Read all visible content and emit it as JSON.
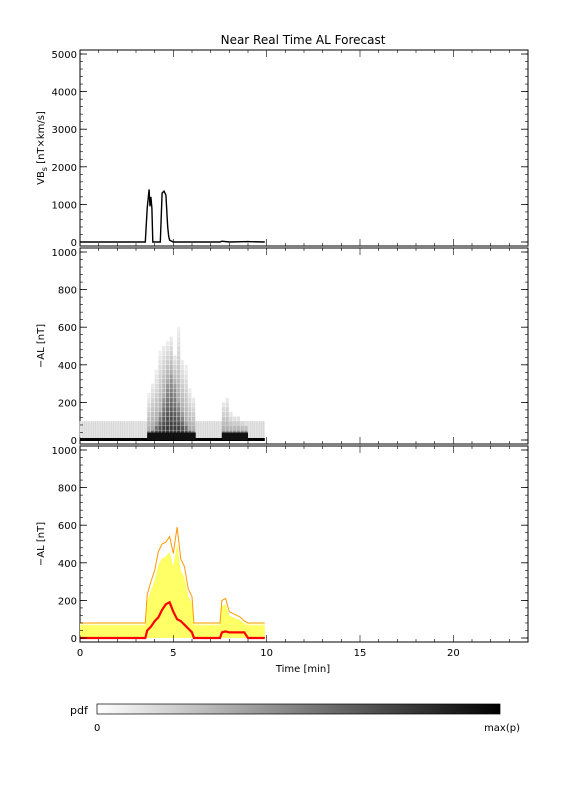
{
  "title": "Near Real Time AL Forecast",
  "colors": {
    "axis": "#000000",
    "pdf_dark": "#000000",
    "yellow_fill": "#ffff66",
    "orange_line": "#ff9900",
    "red_line": "#ff0000",
    "light_band": "#ffffcc"
  },
  "chart_data": [
    {
      "type": "line",
      "panel": "top",
      "title": "Near Real Time AL Forecast",
      "ylabel": "VB",
      "ylabel_sub": "s",
      "ylabel_units": " [nT×km/s]",
      "xlim": [
        0,
        24
      ],
      "ylim": [
        0,
        5000
      ],
      "yticks": [
        "0",
        "1000",
        "2000",
        "3000",
        "4000",
        "5000"
      ],
      "series": [
        {
          "x": [
            0,
            3.5,
            3.6,
            3.7,
            3.75,
            3.8,
            3.85,
            3.9,
            4.0,
            4.3,
            4.4,
            4.5,
            4.6,
            4.7,
            4.75,
            4.8,
            5.0,
            5.5,
            7.5,
            7.6,
            8.0,
            9.0,
            9.9
          ],
          "y": [
            0,
            0,
            900,
            1400,
            950,
            1200,
            900,
            0,
            0,
            0,
            1300,
            1350,
            1250,
            400,
            150,
            50,
            0,
            0,
            0,
            20,
            0,
            10,
            0
          ]
        }
      ]
    },
    {
      "type": "heatmap",
      "panel": "middle",
      "ylabel": "−AL [nT]",
      "xlim": [
        0,
        24
      ],
      "ylim": [
        0,
        1000
      ],
      "yticks": [
        "0",
        "200",
        "400",
        "600",
        "800",
        "1000"
      ],
      "description_values": {
        "x_range": [
          0,
          9.9
        ],
        "bins_x": [
          3.6,
          3.8,
          4.0,
          4.2,
          4.4,
          4.6,
          4.8,
          5.0,
          5.2,
          5.4,
          5.6,
          5.8,
          6.0,
          7.6,
          7.8,
          8.0,
          8.2,
          8.4,
          8.6,
          8.8
        ],
        "max_y": [
          230,
          300,
          360,
          460,
          500,
          510,
          540,
          450,
          590,
          420,
          380,
          260,
          220,
          200,
          220,
          140,
          120,
          120,
          100,
          90
        ],
        "dense_y": [
          30,
          50,
          80,
          140,
          220,
          300,
          340,
          280,
          200,
          130,
          80,
          50,
          30,
          30,
          30,
          30,
          30,
          30,
          30,
          30
        ]
      }
    },
    {
      "type": "area",
      "panel": "bottom",
      "ylabel": "−AL [nT]",
      "xlabel": "Time [min]",
      "xlim": [
        0,
        24
      ],
      "ylim": [
        0,
        1000
      ],
      "xticks": [
        "0",
        "5",
        "10",
        "15",
        "20"
      ],
      "yticks": [
        "0",
        "200",
        "400",
        "600",
        "800",
        "1000"
      ],
      "series": [
        {
          "role": "upper",
          "x": [
            0,
            3.5,
            3.6,
            3.8,
            4.0,
            4.2,
            4.4,
            4.6,
            4.8,
            5.0,
            5.2,
            5.4,
            5.6,
            5.8,
            6.0,
            6.1,
            7.5,
            7.6,
            7.8,
            8.0,
            8.2,
            8.4,
            8.6,
            8.8,
            9.0,
            9.9
          ],
          "y": [
            80,
            80,
            230,
            300,
            360,
            460,
            500,
            510,
            540,
            450,
            590,
            420,
            380,
            260,
            220,
            80,
            80,
            200,
            210,
            140,
            130,
            120,
            110,
            90,
            80,
            80
          ]
        },
        {
          "role": "median",
          "x": [
            0,
            3.5,
            3.6,
            3.8,
            4.0,
            4.2,
            4.4,
            4.6,
            4.8,
            5.0,
            5.2,
            5.4,
            5.6,
            5.8,
            6.0,
            6.1,
            7.5,
            7.6,
            7.8,
            8.0,
            8.2,
            8.4,
            8.6,
            8.8,
            9.0,
            9.9
          ],
          "y": [
            0,
            0,
            40,
            60,
            90,
            110,
            150,
            180,
            190,
            140,
            100,
            90,
            70,
            50,
            30,
            0,
            0,
            30,
            35,
            30,
            30,
            30,
            30,
            30,
            0,
            0
          ]
        }
      ]
    }
  ],
  "colorbar": {
    "label": "pdf",
    "min_label": "0",
    "max_label": "max(p)"
  }
}
